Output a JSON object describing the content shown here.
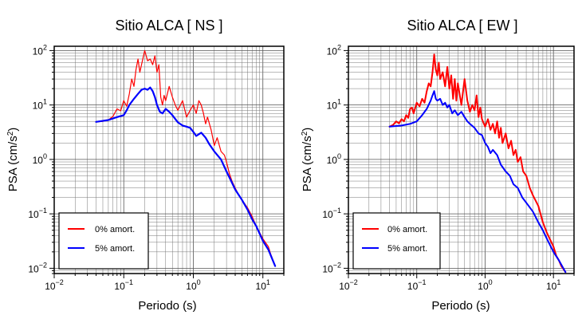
{
  "chart_data": [
    {
      "type": "line",
      "title": "Sitio ALCA [ NS ]",
      "xlabel": "Periodo (s)",
      "ylabel": "PSA (cm/s²)",
      "x_scale": "log",
      "y_scale": "log",
      "xlim": [
        0.01,
        20
      ],
      "ylim": [
        0.008,
        120
      ],
      "grid": true,
      "legend_position": "bottom-left",
      "x_ticks": [
        {
          "value": 0.01,
          "base": "10",
          "exp": "−2"
        },
        {
          "value": 0.1,
          "base": "10",
          "exp": "−1"
        },
        {
          "value": 1,
          "base": "10",
          "exp": "0"
        },
        {
          "value": 10,
          "base": "10",
          "exp": "1"
        }
      ],
      "y_ticks": [
        {
          "value": 0.01,
          "base": "10",
          "exp": "−2"
        },
        {
          "value": 0.1,
          "base": "10",
          "exp": "−1"
        },
        {
          "value": 1,
          "base": "10",
          "exp": "0"
        },
        {
          "value": 10,
          "base": "10",
          "exp": "1"
        },
        {
          "value": 100,
          "base": "10",
          "exp": "2"
        }
      ],
      "series": [
        {
          "name": "0% amort.",
          "color": "#ff0000",
          "width": 1.2,
          "points": [
            [
              0.04,
              4.9
            ],
            [
              0.05,
              5.0
            ],
            [
              0.06,
              5.3
            ],
            [
              0.07,
              6.2
            ],
            [
              0.08,
              8.5
            ],
            [
              0.09,
              7.8
            ],
            [
              0.1,
              12
            ],
            [
              0.11,
              9.5
            ],
            [
              0.12,
              16
            ],
            [
              0.13,
              30
            ],
            [
              0.14,
              22
            ],
            [
              0.15,
              45
            ],
            [
              0.16,
              70
            ],
            [
              0.17,
              40
            ],
            [
              0.18,
              55
            ],
            [
              0.2,
              100
            ],
            [
              0.22,
              65
            ],
            [
              0.24,
              70
            ],
            [
              0.26,
              55
            ],
            [
              0.28,
              80
            ],
            [
              0.3,
              40
            ],
            [
              0.32,
              55
            ],
            [
              0.34,
              14
            ],
            [
              0.36,
              10
            ],
            [
              0.38,
              15
            ],
            [
              0.4,
              12
            ],
            [
              0.45,
              22
            ],
            [
              0.5,
              14
            ],
            [
              0.55,
              10
            ],
            [
              0.6,
              8
            ],
            [
              0.7,
              12
            ],
            [
              0.8,
              6
            ],
            [
              0.9,
              8
            ],
            [
              1.0,
              10
            ],
            [
              1.1,
              7
            ],
            [
              1.2,
              12
            ],
            [
              1.3,
              10
            ],
            [
              1.4,
              7
            ],
            [
              1.5,
              4.5
            ],
            [
              1.6,
              6
            ],
            [
              1.8,
              3.5
            ],
            [
              2.0,
              1.8
            ],
            [
              2.2,
              2.5
            ],
            [
              2.5,
              1.4
            ],
            [
              2.8,
              1.2
            ],
            [
              3.0,
              0.9
            ],
            [
              3.3,
              0.55
            ],
            [
              3.6,
              0.4
            ],
            [
              4.0,
              0.3
            ],
            [
              4.5,
              0.22
            ],
            [
              5.0,
              0.18
            ],
            [
              6.0,
              0.13
            ],
            [
              7.0,
              0.09
            ],
            [
              8.0,
              0.06
            ],
            [
              10,
              0.035
            ],
            [
              12,
              0.025
            ],
            [
              13,
              0.018
            ],
            [
              15,
              0.011
            ]
          ]
        },
        {
          "name": "5% amort.",
          "color": "#0000ff",
          "width": 2.2,
          "points": [
            [
              0.04,
              4.9
            ],
            [
              0.06,
              5.3
            ],
            [
              0.08,
              6.0
            ],
            [
              0.1,
              6.5
            ],
            [
              0.11,
              8.0
            ],
            [
              0.12,
              10
            ],
            [
              0.14,
              13
            ],
            [
              0.16,
              16
            ],
            [
              0.18,
              19
            ],
            [
              0.2,
              20
            ],
            [
              0.22,
              19
            ],
            [
              0.24,
              21
            ],
            [
              0.26,
              18
            ],
            [
              0.28,
              14
            ],
            [
              0.3,
              10
            ],
            [
              0.33,
              7.5
            ],
            [
              0.36,
              7
            ],
            [
              0.4,
              8.5
            ],
            [
              0.45,
              7.5
            ],
            [
              0.5,
              6.5
            ],
            [
              0.6,
              4.8
            ],
            [
              0.7,
              4.2
            ],
            [
              0.8,
              4.0
            ],
            [
              0.9,
              3.8
            ],
            [
              1.0,
              3.2
            ],
            [
              1.1,
              2.7
            ],
            [
              1.2,
              2.9
            ],
            [
              1.3,
              3.1
            ],
            [
              1.5,
              2.5
            ],
            [
              1.7,
              1.9
            ],
            [
              2.0,
              1.4
            ],
            [
              2.5,
              1.0
            ],
            [
              3.0,
              0.6
            ],
            [
              3.5,
              0.4
            ],
            [
              4.0,
              0.28
            ],
            [
              5.0,
              0.18
            ],
            [
              6.0,
              0.12
            ],
            [
              7.0,
              0.08
            ],
            [
              8.0,
              0.06
            ],
            [
              10,
              0.032
            ],
            [
              12,
              0.022
            ],
            [
              15,
              0.011
            ]
          ]
        }
      ]
    },
    {
      "type": "line",
      "title": "Sitio ALCA [ EW ]",
      "xlabel": "Periodo (s)",
      "ylabel": "PSA (cm/s²)",
      "x_scale": "log",
      "y_scale": "log",
      "xlim": [
        0.01,
        20
      ],
      "ylim": [
        0.008,
        120
      ],
      "grid": true,
      "legend_position": "bottom-left",
      "x_ticks": [
        {
          "value": 0.01,
          "base": "10",
          "exp": "−2"
        },
        {
          "value": 0.1,
          "base": "10",
          "exp": "−1"
        },
        {
          "value": 1,
          "base": "10",
          "exp": "0"
        },
        {
          "value": 10,
          "base": "10",
          "exp": "1"
        }
      ],
      "y_ticks": [
        {
          "value": 0.01,
          "base": "10",
          "exp": "−2"
        },
        {
          "value": 0.1,
          "base": "10",
          "exp": "−1"
        },
        {
          "value": 1,
          "base": "10",
          "exp": "0"
        },
        {
          "value": 10,
          "base": "10",
          "exp": "1"
        },
        {
          "value": 100,
          "base": "10",
          "exp": "2"
        }
      ],
      "series": [
        {
          "name": "0% amort.",
          "color": "#ff0000",
          "width": 2.0,
          "points": [
            [
              0.04,
              4.0
            ],
            [
              0.045,
              4.3
            ],
            [
              0.05,
              5.0
            ],
            [
              0.055,
              4.6
            ],
            [
              0.06,
              5.5
            ],
            [
              0.065,
              5.0
            ],
            [
              0.07,
              6.5
            ],
            [
              0.075,
              5.8
            ],
            [
              0.08,
              8.5
            ],
            [
              0.085,
              9.0
            ],
            [
              0.09,
              7.0
            ],
            [
              0.1,
              11
            ],
            [
              0.11,
              9.5
            ],
            [
              0.12,
              13
            ],
            [
              0.13,
              11
            ],
            [
              0.14,
              18
            ],
            [
              0.15,
              25
            ],
            [
              0.16,
              22
            ],
            [
              0.17,
              40
            ],
            [
              0.18,
              85
            ],
            [
              0.19,
              45
            ],
            [
              0.2,
              35
            ],
            [
              0.21,
              60
            ],
            [
              0.22,
              30
            ],
            [
              0.24,
              40
            ],
            [
              0.26,
              22
            ],
            [
              0.28,
              50
            ],
            [
              0.3,
              20
            ],
            [
              0.32,
              35
            ],
            [
              0.34,
              13
            ],
            [
              0.36,
              30
            ],
            [
              0.38,
              12
            ],
            [
              0.4,
              25
            ],
            [
              0.45,
              10
            ],
            [
              0.5,
              30
            ],
            [
              0.55,
              12
            ],
            [
              0.6,
              7.5
            ],
            [
              0.65,
              10
            ],
            [
              0.7,
              8
            ],
            [
              0.75,
              15
            ],
            [
              0.8,
              6
            ],
            [
              0.85,
              9
            ],
            [
              0.9,
              5.5
            ],
            [
              1.0,
              4.0
            ],
            [
              1.1,
              5.5
            ],
            [
              1.2,
              3.5
            ],
            [
              1.3,
              4.5
            ],
            [
              1.4,
              3.0
            ],
            [
              1.5,
              5.0
            ],
            [
              1.6,
              2.5
            ],
            [
              1.7,
              3.8
            ],
            [
              1.8,
              2.0
            ],
            [
              2.0,
              3.0
            ],
            [
              2.2,
              1.6
            ],
            [
              2.4,
              2.2
            ],
            [
              2.6,
              1.2
            ],
            [
              2.8,
              1.5
            ],
            [
              3.0,
              0.9
            ],
            [
              3.3,
              1.1
            ],
            [
              3.6,
              0.6
            ],
            [
              4.0,
              0.5
            ],
            [
              4.5,
              0.3
            ],
            [
              5.0,
              0.22
            ],
            [
              6.0,
              0.14
            ],
            [
              7.0,
              0.07
            ],
            [
              8.0,
              0.045
            ],
            [
              10,
              0.025
            ],
            [
              11,
              0.017
            ],
            [
              12,
              0.014
            ],
            [
              13,
              0.011
            ],
            [
              15,
              0.0085
            ]
          ]
        },
        {
          "name": "5% amort.",
          "color": "#0000ff",
          "width": 2.0,
          "points": [
            [
              0.04,
              4.0
            ],
            [
              0.06,
              4.2
            ],
            [
              0.08,
              4.5
            ],
            [
              0.1,
              5.0
            ],
            [
              0.12,
              6.5
            ],
            [
              0.14,
              8.5
            ],
            [
              0.16,
              12
            ],
            [
              0.17,
              15
            ],
            [
              0.18,
              18
            ],
            [
              0.19,
              13
            ],
            [
              0.2,
              12
            ],
            [
              0.22,
              13
            ],
            [
              0.24,
              10
            ],
            [
              0.26,
              11
            ],
            [
              0.28,
              9
            ],
            [
              0.3,
              10
            ],
            [
              0.33,
              7
            ],
            [
              0.36,
              8
            ],
            [
              0.4,
              6.5
            ],
            [
              0.45,
              7.5
            ],
            [
              0.5,
              6.0
            ],
            [
              0.55,
              5.0
            ],
            [
              0.6,
              4.5
            ],
            [
              0.7,
              3.8
            ],
            [
              0.8,
              3.0
            ],
            [
              0.9,
              2.8
            ],
            [
              1.0,
              2.0
            ],
            [
              1.1,
              1.7
            ],
            [
              1.2,
              1.3
            ],
            [
              1.3,
              1.5
            ],
            [
              1.5,
              1.2
            ],
            [
              1.7,
              0.8
            ],
            [
              2.0,
              0.6
            ],
            [
              2.3,
              0.5
            ],
            [
              2.6,
              0.35
            ],
            [
              3.0,
              0.3
            ],
            [
              3.5,
              0.2
            ],
            [
              4.0,
              0.16
            ],
            [
              5.0,
              0.11
            ],
            [
              6.0,
              0.07
            ],
            [
              7.0,
              0.05
            ],
            [
              8.0,
              0.035
            ],
            [
              10,
              0.02
            ],
            [
              12,
              0.014
            ],
            [
              15,
              0.0085
            ]
          ]
        }
      ]
    }
  ]
}
